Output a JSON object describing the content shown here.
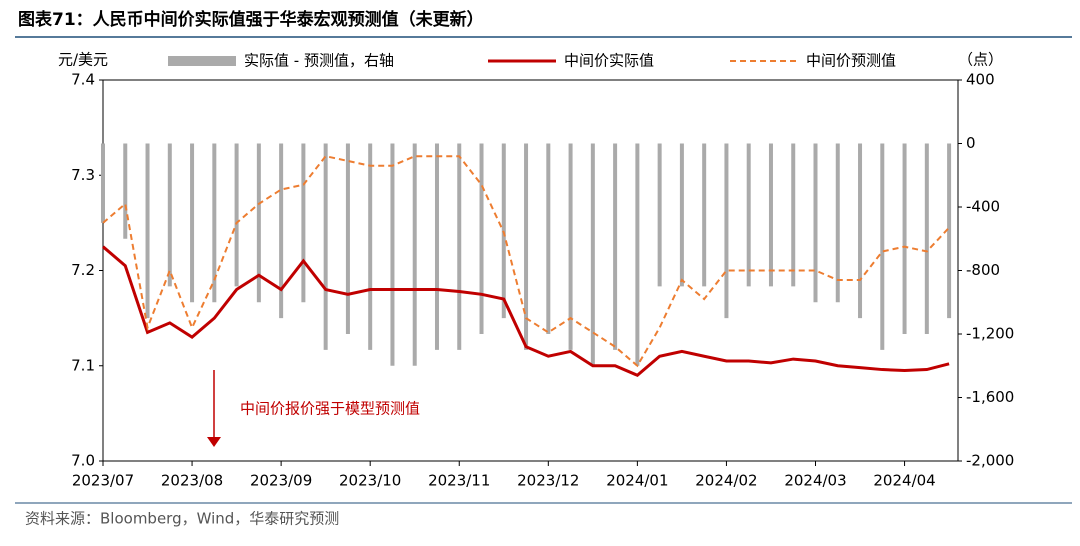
{
  "chart_data": {
    "type": "combo",
    "title": "图表71：人民币中间价实际值强于华泰宏观预测值（未更新）",
    "ylabel": "元/美元",
    "y2label": "（点）",
    "annotation": "中间价报价强于模型预测值",
    "source": "资料来源：Bloomberg，Wind，华泰研究预测",
    "categories": [
      "2023/07",
      null,
      null,
      null,
      "2023/08",
      null,
      null,
      null,
      "2023/09",
      null,
      null,
      null,
      "2023/10",
      null,
      null,
      null,
      "2023/11",
      null,
      null,
      null,
      "2023/12",
      null,
      null,
      null,
      "2024/01",
      null,
      null,
      null,
      "2024/02",
      null,
      null,
      null,
      "2024/03",
      null,
      null,
      null,
      "2024/04",
      null,
      null
    ],
    "ylim": [
      7.0,
      7.4
    ],
    "yticks": [
      {
        "value": 7.0,
        "label": "7.0"
      },
      7.1,
      7.2,
      7.3,
      7.4
    ],
    "y2lim": [
      -2000,
      400
    ],
    "y2ticks": [
      {
        "value": -2000,
        "label": "-2,000"
      },
      {
        "value": -1600,
        "label": "-1,600"
      },
      {
        "value": -1200,
        "label": "-1,200"
      },
      -800,
      -400,
      0,
      400
    ],
    "series": [
      {
        "name": "实际值 - 预测值，右轴",
        "type": "bar",
        "axis": "y2",
        "color": "#aaaaaa",
        "values": [
          -500,
          -600,
          -1100,
          -900,
          -1000,
          -1000,
          -900,
          -1000,
          -1100,
          -1000,
          -1300,
          -1200,
          -1300,
          -1400,
          -1400,
          -1300,
          -1300,
          -1200,
          -1100,
          -1300,
          -1200,
          -1300,
          -1400,
          -1300,
          -1400,
          -900,
          -900,
          -900,
          -1100,
          -900,
          -900,
          -900,
          -1000,
          -1000,
          -1100,
          -1300,
          -1200,
          -1200,
          -1100
        ]
      },
      {
        "name": "中间价实际值",
        "type": "line",
        "color": "#c00000",
        "values": [
          7.225,
          7.205,
          7.135,
          7.145,
          7.13,
          7.15,
          7.18,
          7.195,
          7.18,
          7.21,
          7.18,
          7.175,
          7.18,
          7.18,
          7.18,
          7.18,
          7.178,
          7.175,
          7.17,
          7.12,
          7.11,
          7.115,
          7.1,
          7.1,
          7.09,
          7.11,
          7.115,
          7.11,
          7.105,
          7.105,
          7.103,
          7.107,
          7.105,
          7.1,
          7.098,
          7.096,
          7.095,
          7.096,
          7.102
        ]
      },
      {
        "name": "中间价预测值",
        "type": "line",
        "dashed": true,
        "color": "#ed7d31",
        "values": [
          7.25,
          7.27,
          7.14,
          7.2,
          7.14,
          7.19,
          7.25,
          7.27,
          7.285,
          7.29,
          7.32,
          7.315,
          7.31,
          7.31,
          7.32,
          7.32,
          7.32,
          7.29,
          7.24,
          7.15,
          7.135,
          7.15,
          7.135,
          7.12,
          7.1,
          7.14,
          7.19,
          7.17,
          7.2,
          7.2,
          7.2,
          7.2,
          7.2,
          7.19,
          7.19,
          7.22,
          7.225,
          7.22,
          7.245
        ]
      }
    ]
  }
}
